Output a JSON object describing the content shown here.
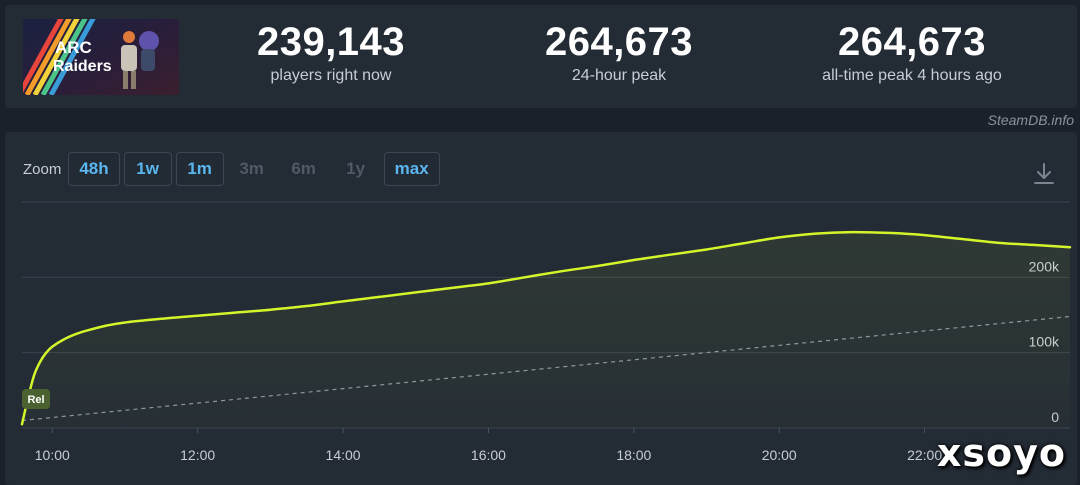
{
  "game": {
    "logo_line1": "ARC",
    "logo_line2": "Raiders"
  },
  "stats": [
    {
      "value": "239,143",
      "label": "players right now"
    },
    {
      "value": "264,673",
      "label": "24-hour peak"
    },
    {
      "value": "264,673",
      "label": "all-time peak 4 hours ago"
    }
  ],
  "credit": "SteamDB.info",
  "zoom": {
    "label": "Zoom",
    "options": [
      {
        "label": "48h",
        "active": true
      },
      {
        "label": "1w",
        "active": true
      },
      {
        "label": "1m",
        "active": true
      },
      {
        "label": "3m",
        "active": false
      },
      {
        "label": "6m",
        "active": false
      },
      {
        "label": "1y",
        "active": false
      },
      {
        "label": "max",
        "active": true
      }
    ]
  },
  "marker": {
    "label": "Rel"
  },
  "watermark": "xsoyo",
  "colors": {
    "series": "#d4f52a",
    "trend": "#8e96a0",
    "accent": "#5ab6ef",
    "marker_bg": "#4b6230",
    "background": "#1b2129",
    "panel": "#232b35"
  },
  "icons": {
    "download": "download-icon"
  },
  "chart_data": {
    "type": "line",
    "x_ticks": [
      "10:00",
      "12:00",
      "14:00",
      "16:00",
      "18:00",
      "20:00",
      "22:00"
    ],
    "y_ticks": [
      "0",
      "100k",
      "200k"
    ],
    "xlim": [
      "09:35",
      "24:00"
    ],
    "ylim": [
      0,
      300000
    ],
    "grid": true,
    "series": [
      {
        "x": [
          "09:35",
          "09:40",
          "09:45",
          "09:50",
          "09:55",
          "10:00",
          "10:10",
          "10:20",
          "10:30",
          "10:45",
          "11:00",
          "11:30",
          "12:00",
          "12:30",
          "13:00",
          "13:30",
          "14:00",
          "14:30",
          "15:00",
          "15:30",
          "16:00",
          "16:30",
          "17:00",
          "17:30",
          "18:00",
          "18:30",
          "19:00",
          "19:30",
          "20:00",
          "20:30",
          "21:00",
          "21:30",
          "22:00",
          "22:30",
          "23:00",
          "23:30",
          "24:00"
        ],
        "values": [
          5000,
          40000,
          70000,
          88000,
          100000,
          108000,
          118000,
          125000,
          130000,
          136000,
          140000,
          145000,
          149000,
          153000,
          157000,
          162000,
          168000,
          174000,
          180000,
          186000,
          192000,
          200000,
          208000,
          215000,
          223000,
          230000,
          237000,
          245000,
          253000,
          258000,
          260000,
          259000,
          256000,
          251000,
          246000,
          243000,
          240000
        ]
      },
      {
        "x": [
          "09:35",
          "24:00"
        ],
        "values": [
          10000,
          148000
        ],
        "style": "dashed"
      }
    ],
    "annotations": [
      {
        "x": "09:35",
        "label": "Rel"
      }
    ]
  }
}
